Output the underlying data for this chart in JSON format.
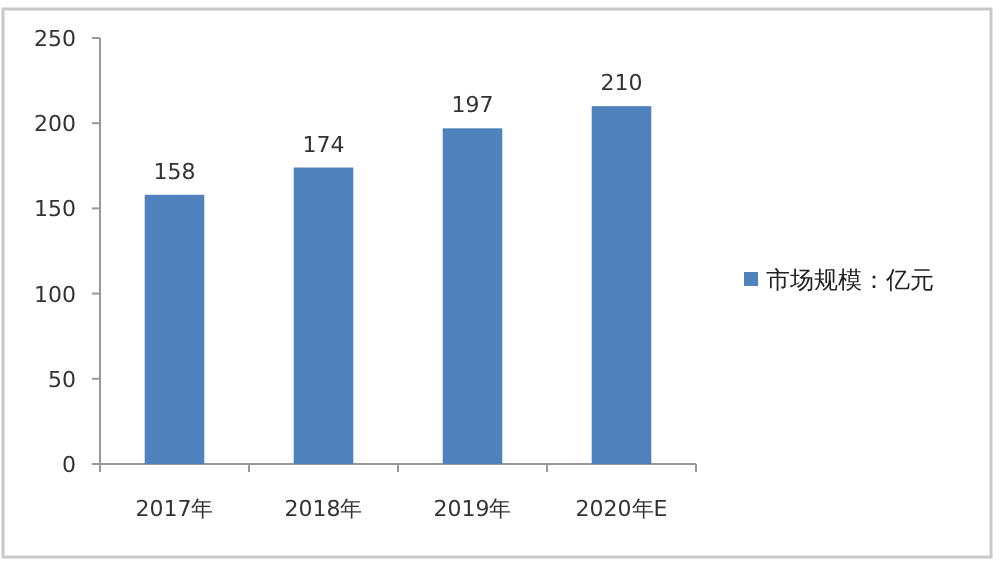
{
  "chart_data": {
    "type": "bar",
    "categories": [
      "2017年",
      "2018年",
      "2019年",
      "2020年E"
    ],
    "series": [
      {
        "name": "市场规模：亿元",
        "color": "#4f81bd",
        "values": [
          158,
          174,
          197,
          210
        ]
      }
    ],
    "ylim": [
      0,
      250
    ],
    "yticks": [
      0,
      50,
      100,
      150,
      200,
      250
    ],
    "grid": false,
    "legend": "right",
    "data_labels": true
  }
}
